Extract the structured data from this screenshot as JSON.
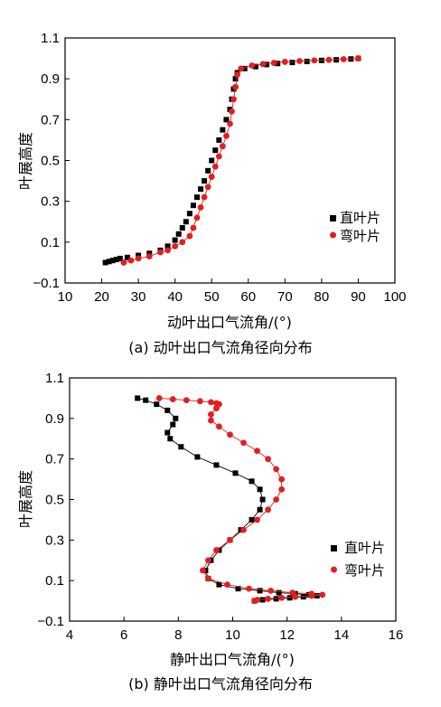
{
  "chart_data": [
    {
      "type": "scatter",
      "xlabel": "动叶出口气流角/(°)",
      "ylabel": "叶展高度",
      "caption": "(a) 动叶出口气流角径向分布",
      "xlim": [
        10,
        100
      ],
      "ylim": [
        -0.1,
        1.1
      ],
      "xticks": [
        "10",
        "20",
        "30",
        "40",
        "50",
        "60",
        "70",
        "80",
        "90",
        "100"
      ],
      "yticks": [
        "−0.1",
        "0.1",
        "0.3",
        "0.5",
        "0.7",
        "0.9",
        "1.1"
      ],
      "legend_position": "right",
      "series": [
        {
          "name": "直叶片",
          "color": "#000000",
          "marker": "square",
          "line": false,
          "points": [
            [
              21,
              0.0
            ],
            [
              22,
              0.005
            ],
            [
              23,
              0.01
            ],
            [
              24,
              0.015
            ],
            [
              25,
              0.02
            ],
            [
              27,
              0.025
            ],
            [
              30,
              0.035
            ],
            [
              33,
              0.045
            ],
            [
              36,
              0.06
            ],
            [
              38,
              0.08
            ],
            [
              40,
              0.11
            ],
            [
              41,
              0.14
            ],
            [
              42,
              0.17
            ],
            [
              43,
              0.2
            ],
            [
              44,
              0.24
            ],
            [
              45,
              0.28
            ],
            [
              46,
              0.32
            ],
            [
              47,
              0.36
            ],
            [
              48,
              0.4
            ],
            [
              49,
              0.45
            ],
            [
              50,
              0.5
            ],
            [
              51,
              0.55
            ],
            [
              52,
              0.6
            ],
            [
              53,
              0.65
            ],
            [
              54,
              0.7
            ],
            [
              55,
              0.75
            ],
            [
              55.5,
              0.8
            ],
            [
              56,
              0.85
            ],
            [
              56.5,
              0.9
            ],
            [
              57,
              0.93
            ],
            [
              59,
              0.95
            ],
            [
              62,
              0.96
            ],
            [
              65,
              0.97
            ],
            [
              68,
              0.975
            ],
            [
              72,
              0.98
            ],
            [
              76,
              0.985
            ],
            [
              80,
              0.99
            ],
            [
              84,
              0.993
            ],
            [
              88,
              0.997
            ],
            [
              90,
              1.0
            ]
          ]
        },
        {
          "name": "弯叶片",
          "color": "#e02020",
          "marker": "circle",
          "line": true,
          "points": [
            [
              26,
              0.0
            ],
            [
              28,
              0.01
            ],
            [
              30,
              0.02
            ],
            [
              33,
              0.03
            ],
            [
              36,
              0.05
            ],
            [
              38,
              0.06
            ],
            [
              40,
              0.08
            ],
            [
              42,
              0.1
            ],
            [
              44,
              0.13
            ],
            [
              45,
              0.17
            ],
            [
              46,
              0.22
            ],
            [
              47,
              0.27
            ],
            [
              48,
              0.32
            ],
            [
              49,
              0.37
            ],
            [
              50,
              0.42
            ],
            [
              51,
              0.47
            ],
            [
              52,
              0.52
            ],
            [
              53,
              0.57
            ],
            [
              54,
              0.62
            ],
            [
              55,
              0.68
            ],
            [
              55.5,
              0.74
            ],
            [
              56,
              0.8
            ],
            [
              56.5,
              0.86
            ],
            [
              57,
              0.92
            ],
            [
              58,
              0.95
            ],
            [
              61,
              0.965
            ],
            [
              64,
              0.972
            ],
            [
              67,
              0.978
            ],
            [
              70,
              0.983
            ],
            [
              74,
              0.987
            ],
            [
              78,
              0.99
            ],
            [
              82,
              0.993
            ],
            [
              86,
              0.996
            ],
            [
              90,
              1.0
            ]
          ]
        }
      ]
    },
    {
      "type": "scatter",
      "xlabel": "静叶出口气流角/(°)",
      "ylabel": "叶展高度",
      "caption": "(b) 静叶出口气流角径向分布",
      "xlim": [
        4,
        16
      ],
      "ylim": [
        -0.1,
        1.1
      ],
      "xticks": [
        "4",
        "6",
        "8",
        "10",
        "12",
        "14",
        "16"
      ],
      "yticks": [
        "−0.1",
        "0.1",
        "0.3",
        "0.5",
        "0.7",
        "0.9",
        "1.1"
      ],
      "legend_position": "right",
      "series": [
        {
          "name": "直叶片",
          "color": "#000000",
          "marker": "square",
          "line": true,
          "points": [
            [
              6.5,
              1.0
            ],
            [
              6.8,
              0.99
            ],
            [
              7.2,
              0.97
            ],
            [
              7.6,
              0.94
            ],
            [
              7.9,
              0.9
            ],
            [
              7.8,
              0.87
            ],
            [
              7.6,
              0.83
            ],
            [
              7.7,
              0.8
            ],
            [
              8.1,
              0.76
            ],
            [
              8.7,
              0.71
            ],
            [
              9.4,
              0.67
            ],
            [
              10.1,
              0.63
            ],
            [
              10.7,
              0.59
            ],
            [
              11.0,
              0.55
            ],
            [
              11.1,
              0.5
            ],
            [
              11.0,
              0.45
            ],
            [
              10.7,
              0.4
            ],
            [
              10.3,
              0.35
            ],
            [
              9.9,
              0.3
            ],
            [
              9.5,
              0.25
            ],
            [
              9.2,
              0.2
            ],
            [
              9.0,
              0.15
            ],
            [
              9.1,
              0.11
            ],
            [
              9.5,
              0.08
            ],
            [
              10.2,
              0.06
            ],
            [
              11.0,
              0.05
            ],
            [
              11.7,
              0.04
            ],
            [
              12.3,
              0.035
            ],
            [
              12.8,
              0.03
            ],
            [
              13.1,
              0.025
            ],
            [
              12.6,
              0.02
            ],
            [
              12.1,
              0.015
            ],
            [
              11.6,
              0.01
            ],
            [
              11.1,
              0.005
            ],
            [
              10.8,
              0.0
            ]
          ]
        },
        {
          "name": "弯叶片",
          "color": "#e02020",
          "marker": "circle",
          "line": true,
          "points": [
            [
              7.3,
              1.0
            ],
            [
              7.8,
              0.995
            ],
            [
              8.3,
              0.99
            ],
            [
              8.8,
              0.985
            ],
            [
              9.2,
              0.98
            ],
            [
              9.4,
              0.975
            ],
            [
              9.5,
              0.97
            ],
            [
              9.4,
              0.95
            ],
            [
              9.2,
              0.92
            ],
            [
              9.2,
              0.89
            ],
            [
              9.5,
              0.86
            ],
            [
              9.9,
              0.82
            ],
            [
              10.4,
              0.78
            ],
            [
              10.9,
              0.74
            ],
            [
              11.3,
              0.7
            ],
            [
              11.6,
              0.65
            ],
            [
              11.8,
              0.6
            ],
            [
              11.8,
              0.55
            ],
            [
              11.6,
              0.5
            ],
            [
              11.3,
              0.45
            ],
            [
              10.9,
              0.4
            ],
            [
              10.4,
              0.35
            ],
            [
              9.9,
              0.3
            ],
            [
              9.4,
              0.25
            ],
            [
              9.1,
              0.2
            ],
            [
              8.9,
              0.15
            ],
            [
              9.1,
              0.11
            ],
            [
              9.8,
              0.08
            ],
            [
              10.6,
              0.06
            ],
            [
              11.4,
              0.05
            ],
            [
              12.2,
              0.04
            ],
            [
              12.9,
              0.035
            ],
            [
              13.3,
              0.03
            ],
            [
              12.9,
              0.025
            ],
            [
              12.3,
              0.02
            ],
            [
              11.8,
              0.015
            ],
            [
              11.3,
              0.01
            ],
            [
              10.9,
              0.005
            ],
            [
              10.8,
              0.0
            ]
          ]
        }
      ]
    }
  ]
}
